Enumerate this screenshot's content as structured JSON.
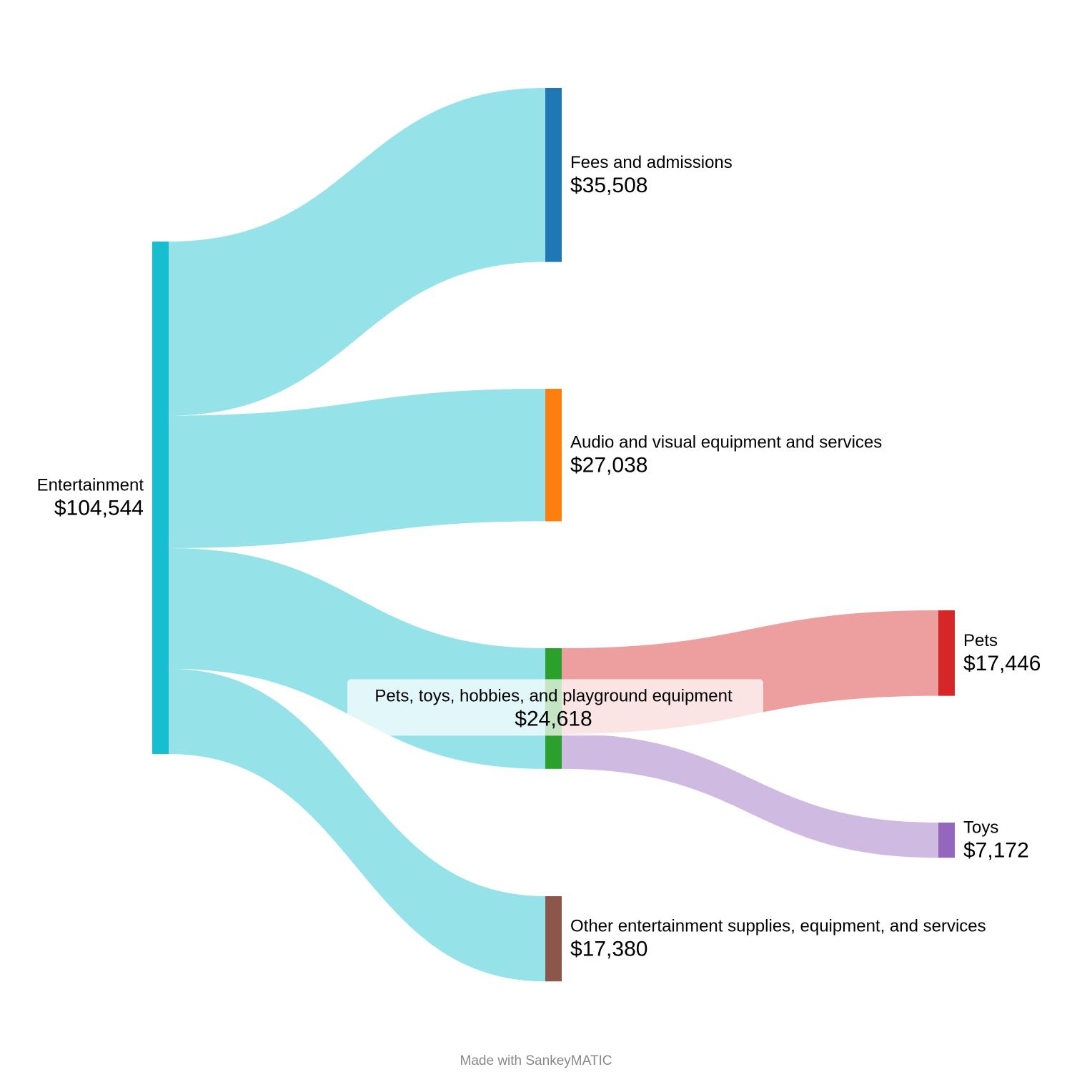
{
  "chart_data": {
    "type": "sankey",
    "nodes": [
      {
        "id": "entertainment",
        "name": "Entertainment",
        "value_label": "$104,544",
        "value": 104544,
        "color": "#17becf"
      },
      {
        "id": "fees",
        "name": "Fees and admissions",
        "value_label": "$35,508",
        "value": 35508,
        "color": "#1f77b4"
      },
      {
        "id": "audio",
        "name": "Audio and visual equipment and services",
        "value_label": "$27,038",
        "value": 27038,
        "color": "#ff7f0e"
      },
      {
        "id": "pets_toys",
        "name": "Pets, toys, hobbies, and playground equipment",
        "value_label": "$24,618",
        "value": 24618,
        "color": "#2ca02c"
      },
      {
        "id": "other",
        "name": "Other entertainment supplies, equipment, and services",
        "value_label": "$17,380",
        "value": 17380,
        "color": "#8c564b"
      },
      {
        "id": "pets",
        "name": "Pets",
        "value_label": "$17,446",
        "value": 17446,
        "color": "#d62728"
      },
      {
        "id": "toys",
        "name": "Toys",
        "value_label": "$7,172",
        "value": 7172,
        "color": "#9467bd"
      }
    ],
    "links": [
      {
        "source": "entertainment",
        "target": "fees",
        "value": 35508,
        "color": "#17becf"
      },
      {
        "source": "entertainment",
        "target": "audio",
        "value": 27038,
        "color": "#17becf"
      },
      {
        "source": "entertainment",
        "target": "pets_toys",
        "value": 24618,
        "color": "#17becf"
      },
      {
        "source": "entertainment",
        "target": "other",
        "value": 17380,
        "color": "#17becf"
      },
      {
        "source": "pets_toys",
        "target": "pets",
        "value": 17446,
        "color": "#d62728"
      },
      {
        "source": "pets_toys",
        "target": "toys",
        "value": 7172,
        "color": "#9467bd"
      }
    ]
  },
  "footer": {
    "credit": "Made with SankeyMATIC"
  }
}
